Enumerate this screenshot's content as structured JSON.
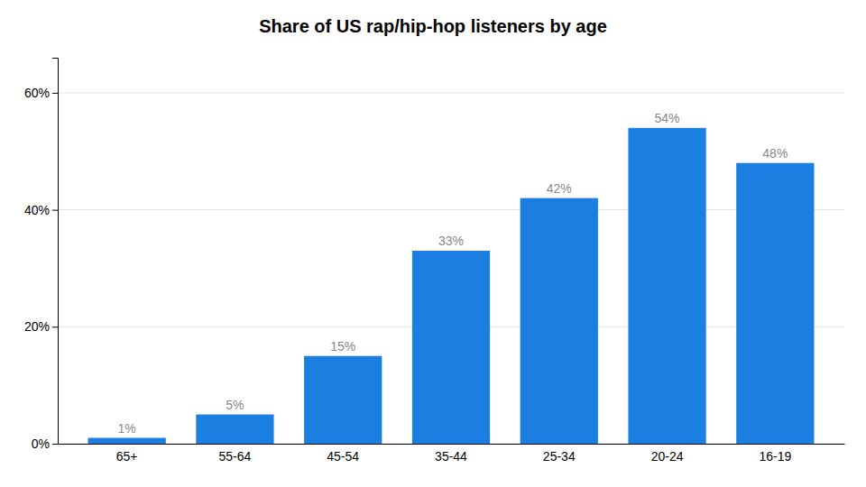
{
  "chart_data": {
    "type": "bar",
    "title": "Share of US rap/hip-hop listeners by age",
    "categories": [
      "65+",
      "55-64",
      "45-54",
      "35-44",
      "25-34",
      "20-24",
      "16-19"
    ],
    "values": [
      1,
      5,
      15,
      33,
      42,
      54,
      48
    ],
    "value_labels": [
      "1%",
      "5%",
      "15%",
      "33%",
      "42%",
      "54%",
      "48%"
    ],
    "data_labels": true,
    "color": "#1a7fe0",
    "ylim": [
      0,
      66
    ],
    "yticks": [
      {
        "value": 0,
        "label": "0%"
      },
      {
        "value": 20,
        "label": "20%"
      },
      {
        "value": 40,
        "label": "40%"
      },
      {
        "value": 60,
        "label": "60%"
      }
    ],
    "grid": true
  }
}
